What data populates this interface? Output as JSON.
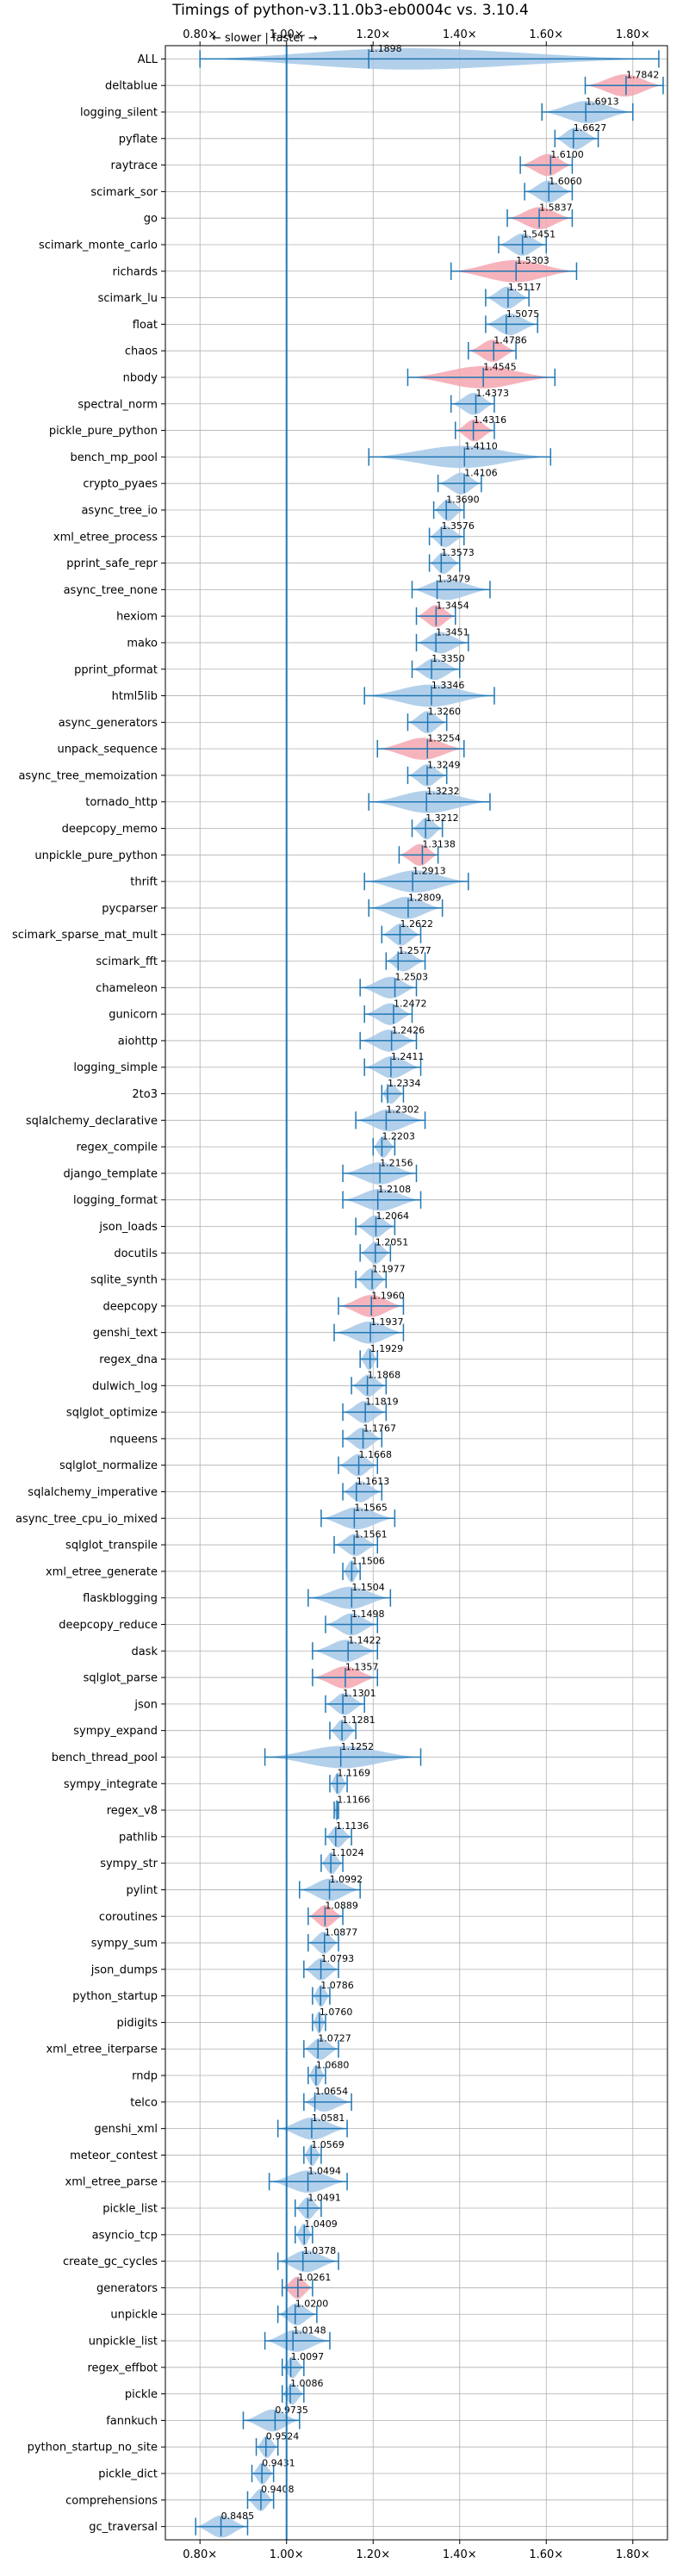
{
  "chart_data": {
    "type": "violin",
    "title": "Timings of python-v3.11.0b3-eb0004c vs. 3.10.4",
    "xlabel": "",
    "ylabel": "",
    "xlim": [
      0.72,
      1.88
    ],
    "xticks": [
      0.8,
      1.0,
      1.2,
      1.4,
      1.6,
      1.8
    ],
    "xtick_labels": [
      "0.80×",
      "1.00×",
      "1.20×",
      "1.40×",
      "1.60×",
      "1.80×"
    ],
    "direction_note": "← slower | faster →",
    "reference_value": 1.0,
    "grid": true,
    "colors": {
      "normal": "#a6c8e8",
      "highlight": "#f4a6b0",
      "line": "#1f77b4",
      "grid": "#b0b0b0"
    },
    "categories": [
      "ALL",
      "deltablue",
      "logging_silent",
      "pyflate",
      "raytrace",
      "scimark_sor",
      "go",
      "scimark_monte_carlo",
      "richards",
      "scimark_lu",
      "float",
      "chaos",
      "nbody",
      "spectral_norm",
      "pickle_pure_python",
      "bench_mp_pool",
      "crypto_pyaes",
      "async_tree_io",
      "xml_etree_process",
      "pprint_safe_repr",
      "async_tree_none",
      "hexiom",
      "mako",
      "pprint_pformat",
      "html5lib",
      "async_generators",
      "unpack_sequence",
      "async_tree_memoization",
      "tornado_http",
      "deepcopy_memo",
      "unpickle_pure_python",
      "thrift",
      "pycparser",
      "scimark_sparse_mat_mult",
      "scimark_fft",
      "chameleon",
      "gunicorn",
      "aiohttp",
      "logging_simple",
      "2to3",
      "sqlalchemy_declarative",
      "regex_compile",
      "django_template",
      "logging_format",
      "json_loads",
      "docutils",
      "sqlite_synth",
      "deepcopy",
      "genshi_text",
      "regex_dna",
      "dulwich_log",
      "sqlglot_optimize",
      "nqueens",
      "sqlglot_normalize",
      "sqlalchemy_imperative",
      "async_tree_cpu_io_mixed",
      "sqlglot_transpile",
      "xml_etree_generate",
      "flaskblogging",
      "deepcopy_reduce",
      "dask",
      "sqlglot_parse",
      "json",
      "sympy_expand",
      "bench_thread_pool",
      "sympy_integrate",
      "regex_v8",
      "pathlib",
      "sympy_str",
      "pylint",
      "coroutines",
      "sympy_sum",
      "json_dumps",
      "python_startup",
      "pidigits",
      "xml_etree_iterparse",
      "rndp",
      "telco",
      "genshi_xml",
      "meteor_contest",
      "xml_etree_parse",
      "pickle_list",
      "asyncio_tcp",
      "create_gc_cycles",
      "generators",
      "unpickle",
      "unpickle_list",
      "regex_effbot",
      "pickle",
      "fannkuch",
      "python_startup_no_site",
      "pickle_dict",
      "comprehensions",
      "gc_traversal"
    ],
    "values": [
      1.1898,
      1.7842,
      1.6913,
      1.6627,
      1.61,
      1.606,
      1.5837,
      1.5451,
      1.5303,
      1.5117,
      1.5075,
      1.4786,
      1.4545,
      1.4373,
      1.4316,
      1.411,
      1.4106,
      1.369,
      1.3576,
      1.3573,
      1.3479,
      1.3454,
      1.3451,
      1.335,
      1.3346,
      1.326,
      1.3254,
      1.3249,
      1.3232,
      1.3212,
      1.3138,
      1.2913,
      1.2809,
      1.2622,
      1.2577,
      1.2503,
      1.2472,
      1.2426,
      1.2411,
      1.2334,
      1.2302,
      1.2203,
      1.2156,
      1.2108,
      1.2064,
      1.2051,
      1.1977,
      1.196,
      1.1937,
      1.1929,
      1.1868,
      1.1819,
      1.1767,
      1.1668,
      1.1613,
      1.1565,
      1.1561,
      1.1506,
      1.1504,
      1.1498,
      1.1422,
      1.1357,
      1.1301,
      1.1281,
      1.1252,
      1.1169,
      1.1166,
      1.1136,
      1.1024,
      1.0992,
      1.0889,
      1.0877,
      1.0793,
      1.0786,
      1.076,
      1.0727,
      1.068,
      1.0654,
      1.0581,
      1.0569,
      1.0494,
      1.0491,
      1.0409,
      1.0378,
      1.0261,
      1.02,
      1.0148,
      1.0097,
      1.0086,
      0.9735,
      0.9524,
      0.9431,
      0.9408,
      0.8485
    ],
    "value_labels": [
      "1.1898",
      "1.7842",
      "1.6913",
      "1.6627",
      "1.6100",
      "1.6060",
      "1.5837",
      "1.5451",
      "1.5303",
      "1.5117",
      "1.5075",
      "1.4786",
      "1.4545",
      "1.4373",
      "1.4316",
      "1.4110",
      "1.4106",
      "1.3690",
      "1.3576",
      "1.3573",
      "1.3479",
      "1.3454",
      "1.3451",
      "1.3350",
      "1.3346",
      "1.3260",
      "1.3254",
      "1.3249",
      "1.3232",
      "1.3212",
      "1.3138",
      "1.2913",
      "1.2809",
      "1.2622",
      "1.2577",
      "1.2503",
      "1.2472",
      "1.2426",
      "1.2411",
      "1.2334",
      "1.2302",
      "1.2203",
      "1.2156",
      "1.2108",
      "1.2064",
      "1.2051",
      "1.1977",
      "1.1960",
      "1.1937",
      "1.1929",
      "1.1868",
      "1.1819",
      "1.1767",
      "1.1668",
      "1.1613",
      "1.1565",
      "1.1561",
      "1.1506",
      "1.1504",
      "1.1498",
      "1.1422",
      "1.1357",
      "1.1301",
      "1.1281",
      "1.1252",
      "1.1169",
      "1.1166",
      "1.1136",
      "1.1024",
      "1.0992",
      "1.0889",
      "1.0877",
      "1.0793",
      "1.0786",
      "1.0760",
      "1.0727",
      "1.0680",
      "1.0654",
      "1.0581",
      "1.0569",
      "1.0494",
      "1.0491",
      "1.0409",
      "1.0378",
      "1.0261",
      "1.0200",
      "1.0148",
      "1.0097",
      "1.0086",
      "0.9735",
      "0.9524",
      "0.9431",
      "0.9408",
      "0.8485"
    ],
    "ranges": [
      [
        0.8,
        1.86
      ],
      [
        1.69,
        1.87
      ],
      [
        1.59,
        1.8
      ],
      [
        1.62,
        1.72
      ],
      [
        1.54,
        1.66
      ],
      [
        1.55,
        1.66
      ],
      [
        1.51,
        1.66
      ],
      [
        1.49,
        1.6
      ],
      [
        1.38,
        1.67
      ],
      [
        1.46,
        1.56
      ],
      [
        1.46,
        1.58
      ],
      [
        1.42,
        1.53
      ],
      [
        1.28,
        1.62
      ],
      [
        1.38,
        1.48
      ],
      [
        1.39,
        1.48
      ],
      [
        1.19,
        1.61
      ],
      [
        1.35,
        1.45
      ],
      [
        1.34,
        1.41
      ],
      [
        1.33,
        1.41
      ],
      [
        1.33,
        1.4
      ],
      [
        1.29,
        1.47
      ],
      [
        1.3,
        1.39
      ],
      [
        1.3,
        1.42
      ],
      [
        1.29,
        1.4
      ],
      [
        1.18,
        1.48
      ],
      [
        1.28,
        1.37
      ],
      [
        1.21,
        1.41
      ],
      [
        1.28,
        1.37
      ],
      [
        1.19,
        1.47
      ],
      [
        1.29,
        1.36
      ],
      [
        1.26,
        1.35
      ],
      [
        1.18,
        1.42
      ],
      [
        1.19,
        1.36
      ],
      [
        1.22,
        1.31
      ],
      [
        1.23,
        1.32
      ],
      [
        1.17,
        1.3
      ],
      [
        1.18,
        1.29
      ],
      [
        1.17,
        1.3
      ],
      [
        1.18,
        1.31
      ],
      [
        1.22,
        1.27
      ],
      [
        1.16,
        1.32
      ],
      [
        1.2,
        1.25
      ],
      [
        1.13,
        1.3
      ],
      [
        1.13,
        1.31
      ],
      [
        1.16,
        1.25
      ],
      [
        1.17,
        1.24
      ],
      [
        1.16,
        1.23
      ],
      [
        1.12,
        1.27
      ],
      [
        1.11,
        1.27
      ],
      [
        1.17,
        1.21
      ],
      [
        1.15,
        1.23
      ],
      [
        1.13,
        1.23
      ],
      [
        1.13,
        1.22
      ],
      [
        1.12,
        1.21
      ],
      [
        1.13,
        1.22
      ],
      [
        1.08,
        1.25
      ],
      [
        1.11,
        1.21
      ],
      [
        1.13,
        1.17
      ],
      [
        1.05,
        1.24
      ],
      [
        1.09,
        1.21
      ],
      [
        1.06,
        1.21
      ],
      [
        1.06,
        1.21
      ],
      [
        1.09,
        1.18
      ],
      [
        1.1,
        1.16
      ],
      [
        0.95,
        1.31
      ],
      [
        1.1,
        1.14
      ],
      [
        1.11,
        1.12
      ],
      [
        1.09,
        1.15
      ],
      [
        1.08,
        1.13
      ],
      [
        1.03,
        1.17
      ],
      [
        1.05,
        1.13
      ],
      [
        1.05,
        1.12
      ],
      [
        1.04,
        1.12
      ],
      [
        1.06,
        1.1
      ],
      [
        1.06,
        1.09
      ],
      [
        1.04,
        1.12
      ],
      [
        1.05,
        1.09
      ],
      [
        1.04,
        1.15
      ],
      [
        0.98,
        1.14
      ],
      [
        1.04,
        1.08
      ],
      [
        0.96,
        1.14
      ],
      [
        1.02,
        1.08
      ],
      [
        1.02,
        1.06
      ],
      [
        0.98,
        1.12
      ],
      [
        0.99,
        1.06
      ],
      [
        0.98,
        1.07
      ],
      [
        0.95,
        1.1
      ],
      [
        0.99,
        1.04
      ],
      [
        0.99,
        1.04
      ],
      [
        0.9,
        1.03
      ],
      [
        0.93,
        0.98
      ],
      [
        0.92,
        0.97
      ],
      [
        0.91,
        0.97
      ],
      [
        0.79,
        0.91
      ]
    ],
    "highlighted": [
      "deltablue",
      "raytrace",
      "go",
      "richards",
      "chaos",
      "nbody",
      "pickle_pure_python",
      "hexiom",
      "unpack_sequence",
      "unpickle_pure_python",
      "deepcopy",
      "sqlglot_parse",
      "coroutines",
      "generators"
    ]
  }
}
